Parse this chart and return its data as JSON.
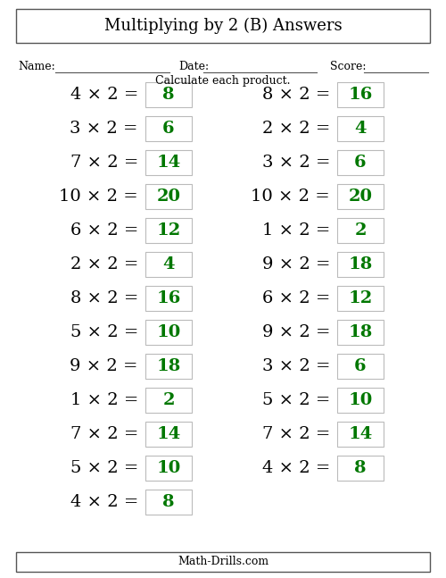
{
  "title": "Multiplying by 2 (B) Answers",
  "subtitle": "Calculate each product.",
  "footer": "Math-Drills.com",
  "name_label": "Name:",
  "date_label": "Date:",
  "score_label": "Score:",
  "left_column": [
    {
      "q": "4 × 2 =",
      "a": "8"
    },
    {
      "q": "3 × 2 =",
      "a": "6"
    },
    {
      "q": "7 × 2 =",
      "a": "14"
    },
    {
      "q": "10 × 2 =",
      "a": "20"
    },
    {
      "q": "6 × 2 =",
      "a": "12"
    },
    {
      "q": "2 × 2 =",
      "a": "4"
    },
    {
      "q": "8 × 2 =",
      "a": "16"
    },
    {
      "q": "5 × 2 =",
      "a": "10"
    },
    {
      "q": "9 × 2 =",
      "a": "18"
    },
    {
      "q": "1 × 2 =",
      "a": "2"
    },
    {
      "q": "7 × 2 =",
      "a": "14"
    },
    {
      "q": "5 × 2 =",
      "a": "10"
    },
    {
      "q": "4 × 2 =",
      "a": "8"
    }
  ],
  "right_column": [
    {
      "q": "8 × 2 =",
      "a": "16"
    },
    {
      "q": "2 × 2 =",
      "a": "4"
    },
    {
      "q": "3 × 2 =",
      "a": "6"
    },
    {
      "q": "10 × 2 =",
      "a": "20"
    },
    {
      "q": "1 × 2 =",
      "a": "2"
    },
    {
      "q": "9 × 2 =",
      "a": "18"
    },
    {
      "q": "6 × 2 =",
      "a": "12"
    },
    {
      "q": "9 × 2 =",
      "a": "18"
    },
    {
      "q": "3 × 2 =",
      "a": "6"
    },
    {
      "q": "5 × 2 =",
      "a": "10"
    },
    {
      "q": "7 × 2 =",
      "a": "14"
    },
    {
      "q": "4 × 2 =",
      "a": "8"
    }
  ],
  "answer_color": "#007700",
  "question_color": "#000000",
  "bg_color": "#ffffff",
  "box_edge_color": "#bbbbbb",
  "title_fontsize": 13,
  "question_fontsize": 14,
  "answer_fontsize": 14,
  "header_fontsize": 9,
  "footer_fontsize": 9
}
